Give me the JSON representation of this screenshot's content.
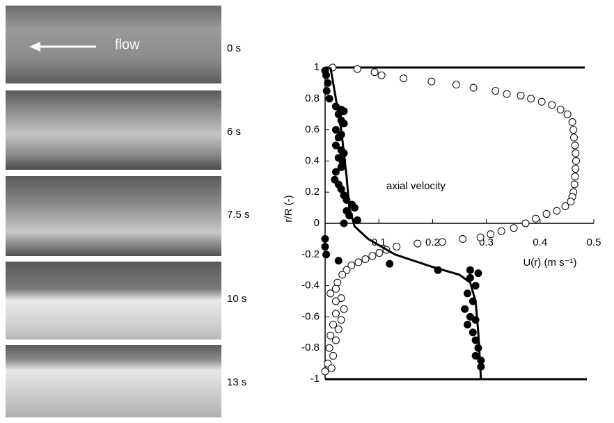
{
  "panels": {
    "flow_label": "flow",
    "time_labels": [
      "0 s",
      "6 s",
      "7.5 s",
      "10 s",
      "13 s"
    ]
  },
  "chart_data": {
    "type": "scatter",
    "xlabel": "U(r) (m s⁻¹)",
    "ylabel": "r/R (-)",
    "annotation": "axial velocity",
    "xlim": [
      0,
      0.5
    ],
    "ylim": [
      -1,
      1
    ],
    "xticks": [
      0.1,
      0.2,
      0.3,
      0.4,
      0.5
    ],
    "yticks": [
      -1,
      -0.8,
      -0.6,
      -0.4,
      -0.2,
      0,
      0.2,
      0.4,
      0.6,
      0.8,
      1
    ],
    "series": [
      {
        "marker": "open",
        "color": "#000000",
        "x": [
          0.014,
          0.06,
          0.092,
          0.105,
          0.146,
          0.198,
          0.244,
          0.276,
          0.317,
          0.338,
          0.364,
          0.383,
          0.403,
          0.422,
          0.438,
          0.451,
          0.46,
          0.462,
          0.463,
          0.465,
          0.466,
          0.467,
          0.466,
          0.465,
          0.464,
          0.462,
          0.46,
          0.457,
          0.447,
          0.431,
          0.412,
          0.392,
          0.373,
          0.351,
          0.328,
          0.308,
          0.289,
          0.256,
          0.218,
          0.172,
          0.133,
          0.114,
          0.101,
          0.088,
          0.075,
          0.062,
          0.049,
          0.04,
          0.032,
          0.023,
          0.02,
          0.01,
          0.03,
          0.02,
          0.035,
          0.02,
          0.03,
          0.015,
          0.025,
          0.01,
          0.02,
          0.008,
          0.015,
          0.005,
          0.012,
          0.0
        ],
        "values": [
          1.0,
          0.99,
          0.97,
          0.95,
          0.93,
          0.91,
          0.89,
          0.87,
          0.85,
          0.83,
          0.82,
          0.8,
          0.78,
          0.76,
          0.73,
          0.7,
          0.65,
          0.6,
          0.55,
          0.5,
          0.45,
          0.4,
          0.35,
          0.3,
          0.25,
          0.2,
          0.17,
          0.14,
          0.11,
          0.08,
          0.06,
          0.03,
          0.0,
          -0.03,
          -0.05,
          -0.07,
          -0.09,
          -0.1,
          -0.12,
          -0.13,
          -0.15,
          -0.17,
          -0.19,
          -0.21,
          -0.23,
          -0.25,
          -0.27,
          -0.3,
          -0.33,
          -0.38,
          -0.42,
          -0.45,
          -0.48,
          -0.5,
          -0.55,
          -0.58,
          -0.62,
          -0.65,
          -0.68,
          -0.72,
          -0.75,
          -0.8,
          -0.85,
          -0.9,
          -0.93,
          -0.95
        ]
      },
      {
        "marker": "filled",
        "color": "#000000",
        "x": [
          0.0,
          0.002,
          0.005,
          0.003,
          0.008,
          0.02,
          0.03,
          0.035,
          0.025,
          0.03,
          0.035,
          0.02,
          0.03,
          0.025,
          0.02,
          0.03,
          0.035,
          0.025,
          0.032,
          0.03,
          0.02,
          0.018,
          0.025,
          0.03,
          0.035,
          0.04,
          0.05,
          0.055,
          0.04,
          0.045,
          0.035,
          0.06,
          0.0,
          0.0,
          0.002,
          0.025,
          0.12,
          0.21,
          0.27,
          0.285,
          0.27,
          0.28,
          0.265,
          0.275,
          0.26,
          0.27,
          0.28,
          0.265,
          0.275,
          0.28,
          0.285,
          0.28,
          0.29,
          0.29
        ],
        "values": [
          0.98,
          0.95,
          0.9,
          0.85,
          0.8,
          0.75,
          0.73,
          0.72,
          0.7,
          0.66,
          0.64,
          0.6,
          0.57,
          0.55,
          0.5,
          0.47,
          0.45,
          0.42,
          0.4,
          0.36,
          0.33,
          0.28,
          0.25,
          0.22,
          0.18,
          0.15,
          0.12,
          0.1,
          0.08,
          0.05,
          0.0,
          0.02,
          -0.1,
          -0.15,
          -0.2,
          -0.24,
          -0.26,
          -0.3,
          -0.3,
          -0.32,
          -0.35,
          -0.4,
          -0.45,
          -0.5,
          -0.55,
          -0.6,
          -0.62,
          -0.65,
          -0.7,
          -0.75,
          -0.8,
          -0.85,
          -0.88,
          -0.92
        ]
      },
      {
        "marker": "line",
        "color": "#000000",
        "x": [
          0.01,
          0.03,
          0.04,
          0.045,
          0.055,
          0.08,
          0.13,
          0.2,
          0.25,
          0.27,
          0.28,
          0.285,
          0.29
        ],
        "values": [
          1,
          0.6,
          0.3,
          0.1,
          -0.02,
          -0.1,
          -0.2,
          -0.28,
          -0.33,
          -0.38,
          -0.5,
          -0.7,
          -1
        ]
      }
    ]
  }
}
